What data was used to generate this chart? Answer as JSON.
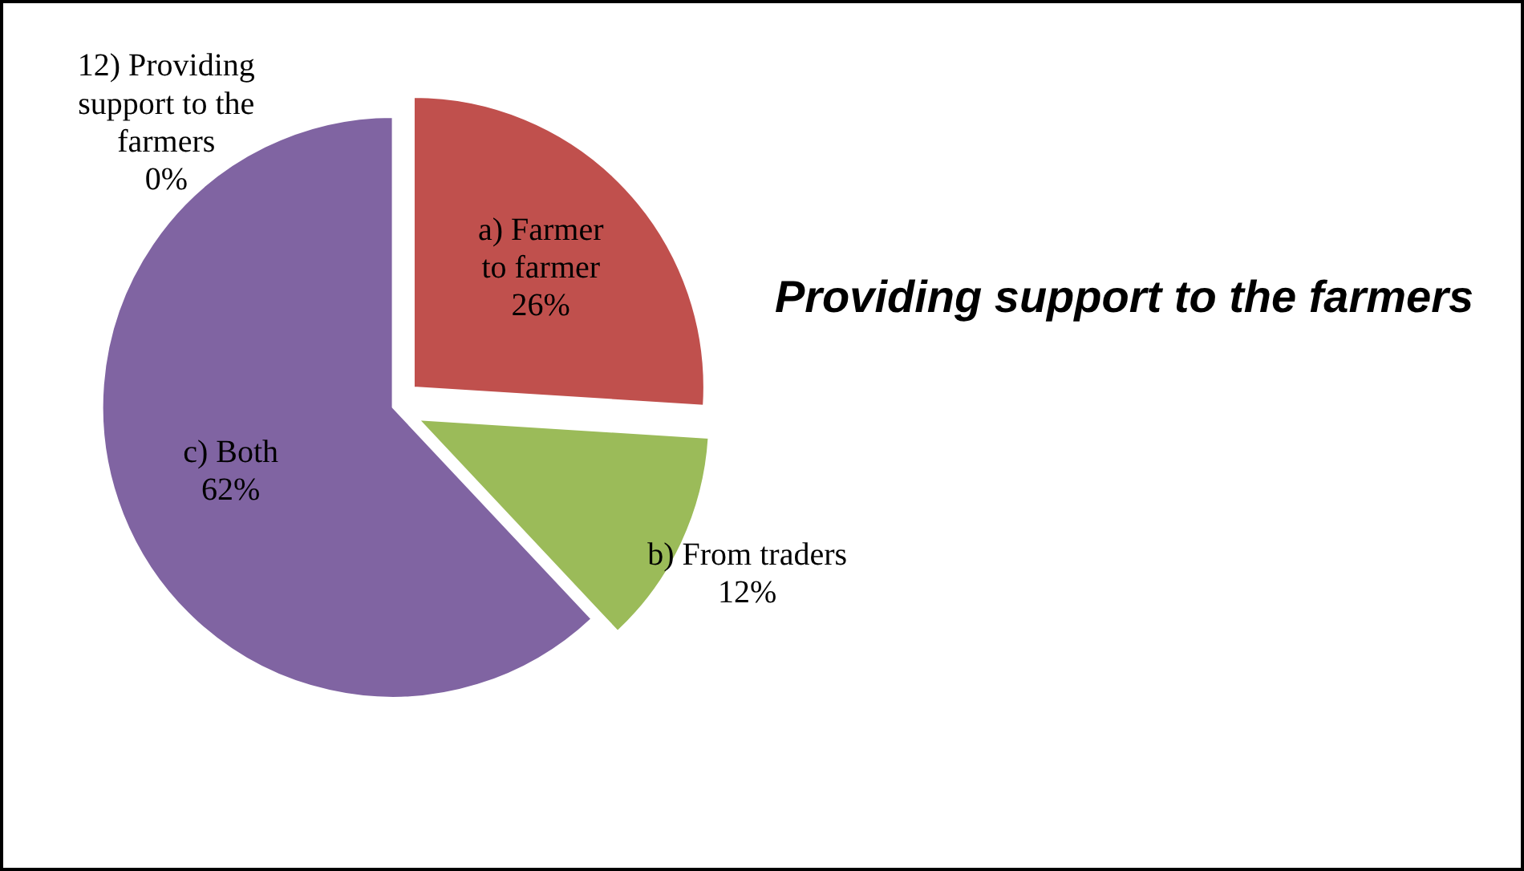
{
  "chart_data": {
    "type": "pie",
    "title": "Providing support to the farmers",
    "categories": [
      "a) Farmer to farmer",
      "b) From traders",
      "c) Both",
      "12) Providing support to the farmers"
    ],
    "values": [
      26,
      12,
      62,
      0
    ],
    "colors": [
      "#c0504d",
      "#9bbb59",
      "#8064a2",
      "#4f81bd"
    ],
    "value_labels": [
      "26%",
      "12%",
      "62%",
      "0%"
    ]
  }
}
